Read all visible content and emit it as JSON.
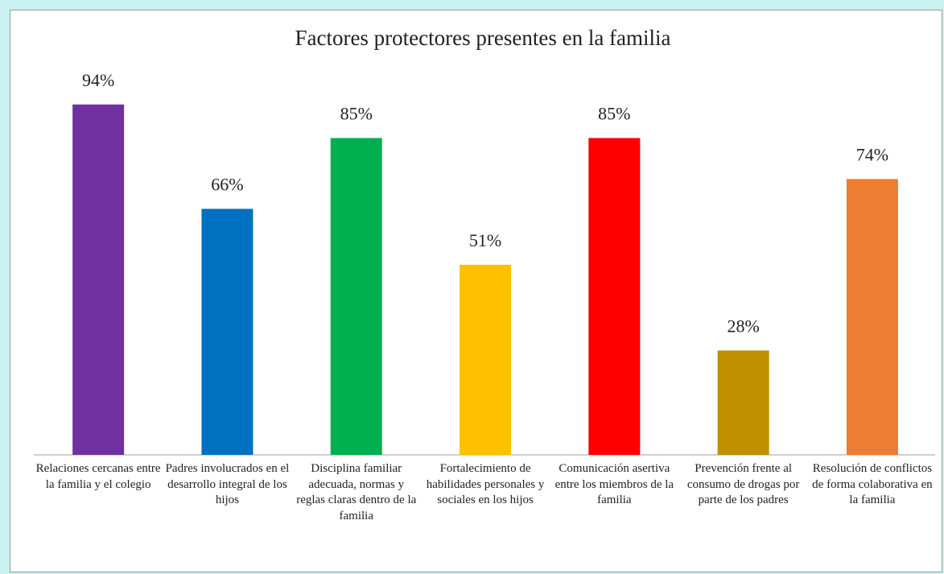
{
  "chart_data": {
    "type": "bar",
    "title": "Factores protectores presentes en la familia",
    "categories": [
      "Relaciones cercanas entre la familia y el colegio",
      "Padres involucrados en el desarrollo integral de los hijos",
      "Disciplina familiar adecuada, normas y reglas claras dentro de la familia",
      "Fortalecimiento de habilidades personales y sociales en los hijos",
      "Comunicación asertiva entre los miembros de la familia",
      "Prevención frente al consumo de drogas por parte de los padres",
      "Resolución de conflictos de forma colaborativa en la familia"
    ],
    "values": [
      94,
      66,
      85,
      51,
      85,
      28,
      74
    ],
    "value_labels": [
      "94%",
      "66%",
      "85%",
      "51%",
      "85%",
      "28%",
      "74%"
    ],
    "colors": [
      "#7030a0",
      "#0070c0",
      "#00b050",
      "#ffc000",
      "#ff0000",
      "#bf9000",
      "#ed7d31"
    ]
  }
}
